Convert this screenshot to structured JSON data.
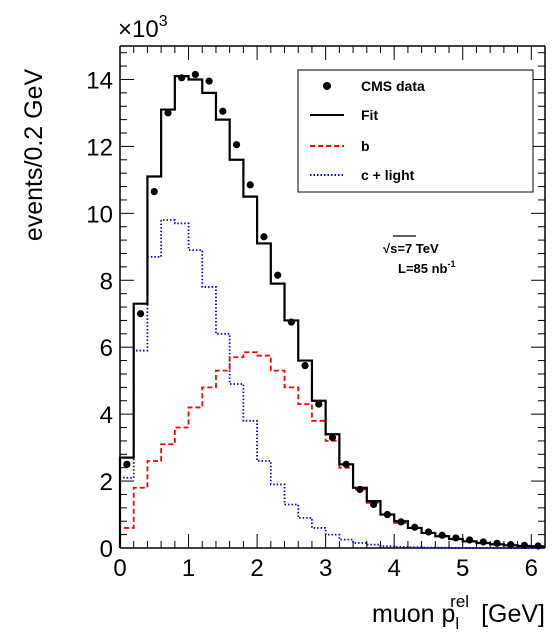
{
  "chart_data": {
    "type": "histogram",
    "xlabel_main": "muon p",
    "xlabel_sub": "l",
    "xlabel_sup": "rel",
    "xlabel_unit": "[GeV]",
    "ylabel": "events/0.2 GeV",
    "y_multiplier": "×10",
    "y_multiplier_exp": "3",
    "xlim": [
      0,
      6.2
    ],
    "ylim": [
      0,
      15
    ],
    "x_ticks": [
      "0",
      "1",
      "2",
      "3",
      "4",
      "5",
      "6"
    ],
    "y_ticks": [
      "0",
      "2",
      "4",
      "6",
      "8",
      "10",
      "12",
      "14"
    ],
    "bin_width": 0.2,
    "bin_edges": [
      0.0,
      0.2,
      0.4,
      0.6,
      0.8,
      1.0,
      1.2,
      1.4,
      1.6,
      1.8,
      2.0,
      2.2,
      2.4,
      2.6,
      2.8,
      3.0,
      3.2,
      3.4,
      3.6,
      3.8,
      4.0,
      4.2,
      4.4,
      4.6,
      4.8,
      5.0,
      5.2,
      5.4,
      5.6,
      5.8,
      6.0,
      6.2
    ],
    "series": [
      {
        "name": "CMS data",
        "style": "points",
        "color": "#000000",
        "x": [
          0.1,
          0.3,
          0.5,
          0.7,
          0.9,
          1.1,
          1.3,
          1.5,
          1.7,
          1.9,
          2.1,
          2.3,
          2.5,
          2.7,
          2.9,
          3.1,
          3.3,
          3.5,
          3.7,
          3.9,
          4.1,
          4.3,
          4.5,
          4.7,
          4.9,
          5.1,
          5.3,
          5.5,
          5.7,
          5.9,
          6.1
        ],
        "values": [
          2.5,
          7.0,
          10.65,
          13.0,
          14.05,
          14.15,
          13.95,
          13.05,
          12.05,
          10.85,
          9.3,
          8.15,
          6.75,
          5.45,
          4.3,
          3.3,
          2.5,
          1.75,
          1.3,
          1.0,
          0.78,
          0.62,
          0.48,
          0.38,
          0.3,
          0.24,
          0.18,
          0.14,
          0.1,
          0.08,
          0.06
        ]
      },
      {
        "name": "Fit",
        "style": "step-solid",
        "color": "#000000",
        "values": [
          2.7,
          7.3,
          11.1,
          13.1,
          14.1,
          14.0,
          13.6,
          12.8,
          11.6,
          10.5,
          9.1,
          7.9,
          6.8,
          5.6,
          4.4,
          3.4,
          2.5,
          1.8,
          1.4,
          1.0,
          0.8,
          0.6,
          0.45,
          0.35,
          0.27,
          0.2,
          0.15,
          0.11,
          0.08,
          0.06,
          0.05
        ]
      },
      {
        "name": "b",
        "style": "step-dashed",
        "color": "#ff0000",
        "values": [
          0.6,
          1.8,
          2.6,
          3.1,
          3.6,
          4.2,
          4.8,
          5.3,
          5.7,
          5.85,
          5.75,
          5.3,
          4.8,
          4.3,
          3.8,
          3.2,
          2.4,
          1.75,
          1.35,
          1.0,
          0.75,
          0.6,
          0.45,
          0.35,
          0.27,
          0.2,
          0.15,
          0.11,
          0.08,
          0.06,
          0.05
        ]
      },
      {
        "name": "c + light",
        "style": "step-dotted",
        "color": "#0000cc",
        "values": [
          2.1,
          5.9,
          8.7,
          9.8,
          9.7,
          8.9,
          7.8,
          6.4,
          4.9,
          3.8,
          2.6,
          1.9,
          1.3,
          0.9,
          0.6,
          0.4,
          0.25,
          0.15,
          0.1,
          0.05,
          0.03,
          0.02,
          0.01,
          0.01,
          0.0,
          0.0,
          0.0,
          0.0,
          0.0,
          0.0,
          0.0
        ]
      }
    ],
    "legend_placement": "top-right",
    "annotations": {
      "energy_sqrt": "√",
      "energy_rest": "s=7 TeV",
      "lumi_main": "L=85 nb",
      "lumi_exp": "-1"
    }
  }
}
